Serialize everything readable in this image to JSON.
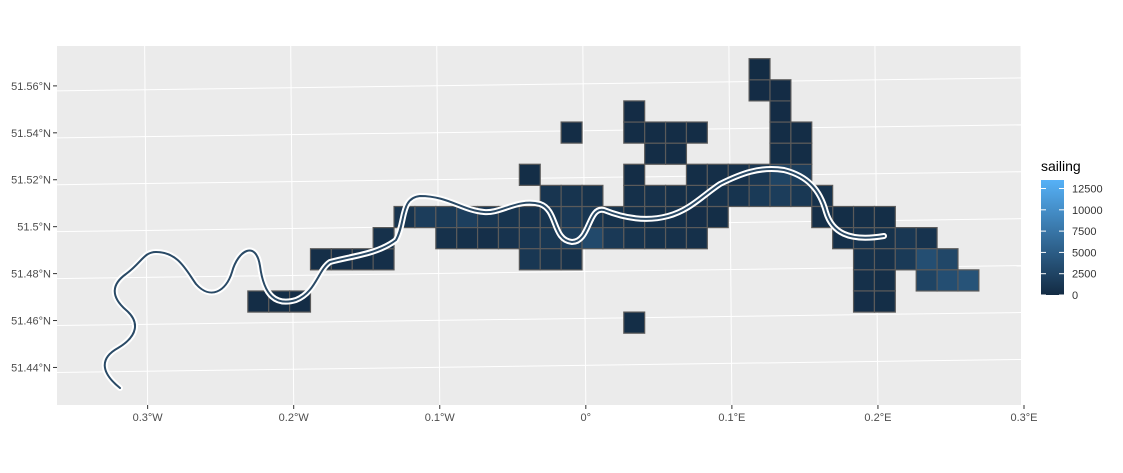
{
  "chart_data": {
    "type": "heatmap",
    "title": "",
    "xlabel": "",
    "ylabel": "",
    "x_ticks": [
      "0.3°W",
      "0.2°W",
      "0.1°W",
      "0°",
      "0.1°E",
      "0.2°E",
      "0.3°E"
    ],
    "y_ticks": [
      "51.44°N",
      "51.46°N",
      "51.48°N",
      "51.5°N",
      "51.52°N",
      "51.54°N",
      "51.56°N"
    ],
    "xlim": [
      -0.36,
      0.3
    ],
    "ylim": [
      51.424,
      51.577
    ],
    "grid": true,
    "fill_variable": "sailing",
    "legend": {
      "title": "sailing",
      "position": "right",
      "labels": [
        "12500",
        "10000",
        "7500",
        "5000",
        "2500",
        "0"
      ],
      "range": [
        0,
        13500
      ],
      "color_low": "#132b43",
      "color_high": "#56b1f7"
    },
    "cell_size_deg": {
      "lon": 0.0143,
      "lat": 0.009
    },
    "cells": [
      {
        "lon": -0.2222,
        "lat": 51.4681,
        "value": 250
      },
      {
        "lon": -0.2079,
        "lat": 51.4681,
        "value": 300
      },
      {
        "lon": -0.1936,
        "lat": 51.4681,
        "value": 250
      },
      {
        "lon": -0.1793,
        "lat": 51.4861,
        "value": 400
      },
      {
        "lon": -0.165,
        "lat": 51.4861,
        "value": 350
      },
      {
        "lon": -0.1507,
        "lat": 51.4861,
        "value": 300
      },
      {
        "lon": -0.1364,
        "lat": 51.4861,
        "value": 450
      },
      {
        "lon": -0.1364,
        "lat": 51.4951,
        "value": 600
      },
      {
        "lon": -0.1221,
        "lat": 51.5041,
        "value": 900
      },
      {
        "lon": -0.1078,
        "lat": 51.5041,
        "value": 1800
      },
      {
        "lon": -0.0935,
        "lat": 51.5041,
        "value": 1500
      },
      {
        "lon": -0.0792,
        "lat": 51.5041,
        "value": 2000
      },
      {
        "lon": -0.0649,
        "lat": 51.5041,
        "value": 1200
      },
      {
        "lon": -0.0506,
        "lat": 51.5041,
        "value": 900
      },
      {
        "lon": -0.0363,
        "lat": 51.5041,
        "value": 800
      },
      {
        "lon": -0.022,
        "lat": 51.5041,
        "value": 1000
      },
      {
        "lon": -0.0077,
        "lat": 51.5041,
        "value": 1400
      },
      {
        "lon": 0.0066,
        "lat": 51.5041,
        "value": 1100
      },
      {
        "lon": 0.0209,
        "lat": 51.5041,
        "value": 700
      },
      {
        "lon": 0.0352,
        "lat": 51.5041,
        "value": 500
      },
      {
        "lon": 0.0495,
        "lat": 51.5041,
        "value": 400
      },
      {
        "lon": 0.0638,
        "lat": 51.5041,
        "value": 500
      },
      {
        "lon": 0.0781,
        "lat": 51.5041,
        "value": 350
      },
      {
        "lon": 0.0924,
        "lat": 51.5041,
        "value": 300
      },
      {
        "lon": -0.0935,
        "lat": 51.4951,
        "value": 600
      },
      {
        "lon": -0.0792,
        "lat": 51.4951,
        "value": 500
      },
      {
        "lon": -0.0649,
        "lat": 51.4951,
        "value": 450
      },
      {
        "lon": -0.0506,
        "lat": 51.4951,
        "value": 800
      },
      {
        "lon": -0.0363,
        "lat": 51.4951,
        "value": 1100
      },
      {
        "lon": -0.022,
        "lat": 51.4951,
        "value": 1300
      },
      {
        "lon": -0.0077,
        "lat": 51.4951,
        "value": 1900
      },
      {
        "lon": 0.0066,
        "lat": 51.4951,
        "value": 3000
      },
      {
        "lon": 0.0209,
        "lat": 51.4951,
        "value": 1400
      },
      {
        "lon": 0.0352,
        "lat": 51.4951,
        "value": 900
      },
      {
        "lon": 0.0495,
        "lat": 51.4951,
        "value": 700
      },
      {
        "lon": 0.0638,
        "lat": 51.4951,
        "value": 600
      },
      {
        "lon": 0.0781,
        "lat": 51.4951,
        "value": 500
      },
      {
        "lon": -0.0363,
        "lat": 51.4861,
        "value": 1200
      },
      {
        "lon": -0.022,
        "lat": 51.4861,
        "value": 900
      },
      {
        "lon": -0.0077,
        "lat": 51.4861,
        "value": 700
      },
      {
        "lon": -0.022,
        "lat": 51.5131,
        "value": 1000
      },
      {
        "lon": -0.0077,
        "lat": 51.5131,
        "value": 900
      },
      {
        "lon": 0.0066,
        "lat": 51.5131,
        "value": 700
      },
      {
        "lon": 0.0352,
        "lat": 51.5131,
        "value": 500
      },
      {
        "lon": 0.0495,
        "lat": 51.5131,
        "value": 600
      },
      {
        "lon": 0.0638,
        "lat": 51.5131,
        "value": 400
      },
      {
        "lon": 0.0781,
        "lat": 51.5131,
        "value": 500
      },
      {
        "lon": 0.0924,
        "lat": 51.5131,
        "value": 700
      },
      {
        "lon": 0.1067,
        "lat": 51.5131,
        "value": 900
      },
      {
        "lon": 0.121,
        "lat": 51.5131,
        "value": 1500
      },
      {
        "lon": 0.1353,
        "lat": 51.5131,
        "value": 1800
      },
      {
        "lon": 0.1496,
        "lat": 51.5131,
        "value": 1300
      },
      {
        "lon": 0.1639,
        "lat": 51.5131,
        "value": 700
      },
      {
        "lon": 0.1782,
        "lat": 51.5041,
        "value": 300
      },
      {
        "lon": 0.1639,
        "lat": 51.5041,
        "value": 400
      },
      {
        "lon": -0.0363,
        "lat": 51.5221,
        "value": 300
      },
      {
        "lon": 0.0352,
        "lat": 51.5221,
        "value": 250
      },
      {
        "lon": 0.0781,
        "lat": 51.5221,
        "value": 300
      },
      {
        "lon": 0.0924,
        "lat": 51.5221,
        "value": 400
      },
      {
        "lon": 0.1067,
        "lat": 51.5221,
        "value": 600
      },
      {
        "lon": 0.121,
        "lat": 51.5221,
        "value": 1200
      },
      {
        "lon": 0.1353,
        "lat": 51.5221,
        "value": 2500
      },
      {
        "lon": 0.1496,
        "lat": 51.5221,
        "value": 1800
      },
      {
        "lon": 0.0495,
        "lat": 51.5311,
        "value": 200
      },
      {
        "lon": 0.0638,
        "lat": 51.5311,
        "value": 250
      },
      {
        "lon": 0.1353,
        "lat": 51.5311,
        "value": 300
      },
      {
        "lon": 0.1496,
        "lat": 51.5311,
        "value": 250
      },
      {
        "lon": 0.0352,
        "lat": 51.5401,
        "value": 200
      },
      {
        "lon": 0.0495,
        "lat": 51.5401,
        "value": 250
      },
      {
        "lon": 0.0638,
        "lat": 51.5401,
        "value": 200
      },
      {
        "lon": 0.0781,
        "lat": 51.5401,
        "value": 250
      },
      {
        "lon": 0.1353,
        "lat": 51.5401,
        "value": 200
      },
      {
        "lon": 0.1496,
        "lat": 51.5401,
        "value": 200
      },
      {
        "lon": -0.0077,
        "lat": 51.5401,
        "value": 200
      },
      {
        "lon": 0.0352,
        "lat": 51.5491,
        "value": 150
      },
      {
        "lon": 0.1353,
        "lat": 51.5491,
        "value": 150
      },
      {
        "lon": 0.121,
        "lat": 51.5581,
        "value": 150
      },
      {
        "lon": 0.1353,
        "lat": 51.5581,
        "value": 150
      },
      {
        "lon": 0.121,
        "lat": 51.5671,
        "value": 100
      },
      {
        "lon": 0.1782,
        "lat": 51.4951,
        "value": 500
      },
      {
        "lon": 0.1925,
        "lat": 51.4951,
        "value": 800
      },
      {
        "lon": 0.2068,
        "lat": 51.4951,
        "value": 700
      },
      {
        "lon": 0.1925,
        "lat": 51.5041,
        "value": 400
      },
      {
        "lon": 0.2068,
        "lat": 51.5041,
        "value": 300
      },
      {
        "lon": 0.2211,
        "lat": 51.4951,
        "value": 1200
      },
      {
        "lon": 0.2354,
        "lat": 51.4951,
        "value": 800
      },
      {
        "lon": 0.2068,
        "lat": 51.4861,
        "value": 600
      },
      {
        "lon": 0.1925,
        "lat": 51.4861,
        "value": 700
      },
      {
        "lon": 0.2211,
        "lat": 51.4861,
        "value": 1500
      },
      {
        "lon": 0.2354,
        "lat": 51.4861,
        "value": 3500
      },
      {
        "lon": 0.2497,
        "lat": 51.4861,
        "value": 2800
      },
      {
        "lon": 0.2354,
        "lat": 51.4771,
        "value": 2500
      },
      {
        "lon": 0.2497,
        "lat": 51.4771,
        "value": 3500
      },
      {
        "lon": 0.264,
        "lat": 51.4771,
        "value": 4000
      },
      {
        "lon": 0.1925,
        "lat": 51.4771,
        "value": 500
      },
      {
        "lon": 0.2068,
        "lat": 51.4771,
        "value": 400
      },
      {
        "lon": 0.1925,
        "lat": 51.4681,
        "value": 350
      },
      {
        "lon": 0.2068,
        "lat": 51.4681,
        "value": 300
      },
      {
        "lon": 0.0352,
        "lat": 51.4591,
        "value": 300
      }
    ]
  }
}
